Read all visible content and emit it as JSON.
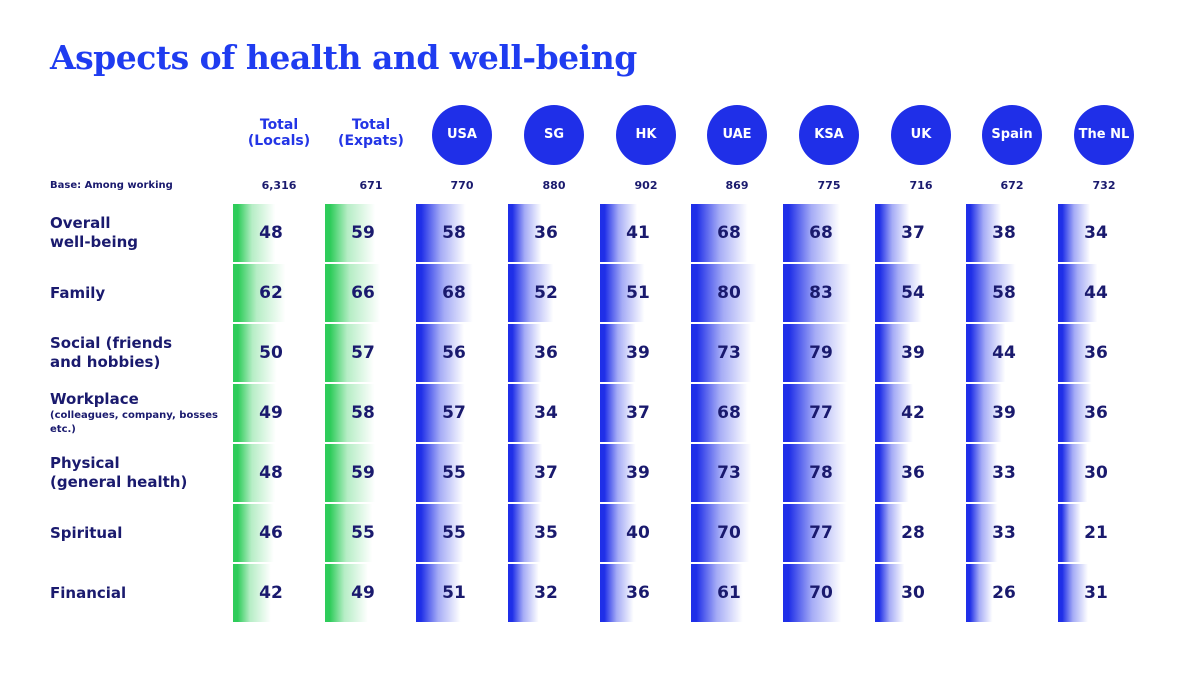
{
  "title": "Aspects of health and well-being",
  "base_label": "Base: Among working",
  "colors": {
    "title": "#1f3cf0",
    "text": "#1a1a6e",
    "locals_expats_bar": "#2ecc5a",
    "country_bar": "#1f2fe8"
  },
  "chart_data": {
    "type": "table",
    "title": "Aspects of health and well-being",
    "columns": [
      {
        "label": "Total (Locals)",
        "style": "plain",
        "base": "6,316"
      },
      {
        "label": "Total (Expats)",
        "style": "plain",
        "base": "671"
      },
      {
        "label": "USA",
        "style": "circle",
        "base": "770"
      },
      {
        "label": "SG",
        "style": "circle",
        "base": "880"
      },
      {
        "label": "HK",
        "style": "circle",
        "base": "902"
      },
      {
        "label": "UAE",
        "style": "circle",
        "base": "869"
      },
      {
        "label": "KSA",
        "style": "circle",
        "base": "775"
      },
      {
        "label": "UK",
        "style": "circle",
        "base": "716"
      },
      {
        "label": "Spain",
        "style": "circle",
        "base": "672"
      },
      {
        "label": "The NL",
        "style": "circle",
        "base": "732"
      }
    ],
    "rows": [
      {
        "label": "Overall well-being",
        "lines": [
          "Overall",
          "well-being"
        ],
        "sub": "",
        "values": [
          48,
          59,
          58,
          36,
          41,
          68,
          68,
          37,
          38,
          34
        ]
      },
      {
        "label": "Family",
        "lines": [
          "Family"
        ],
        "sub": "",
        "values": [
          62,
          66,
          68,
          52,
          51,
          80,
          83,
          54,
          58,
          44
        ]
      },
      {
        "label": "Social (friends and hobbies)",
        "lines": [
          "Social (friends",
          "and hobbies)"
        ],
        "sub": "",
        "values": [
          50,
          57,
          56,
          36,
          39,
          73,
          79,
          39,
          44,
          36
        ]
      },
      {
        "label": "Workplace",
        "lines": [
          "Workplace"
        ],
        "sub": "(colleagues, company, bosses etc.)",
        "values": [
          49,
          58,
          57,
          34,
          37,
          68,
          77,
          42,
          39,
          36
        ]
      },
      {
        "label": "Physical (general health)",
        "lines": [
          "Physical",
          "(general health)"
        ],
        "sub": "",
        "values": [
          48,
          59,
          55,
          37,
          39,
          73,
          78,
          36,
          33,
          30
        ]
      },
      {
        "label": "Spiritual",
        "lines": [
          "Spiritual"
        ],
        "sub": "",
        "values": [
          46,
          55,
          55,
          35,
          40,
          70,
          77,
          28,
          33,
          21
        ]
      },
      {
        "label": "Financial",
        "lines": [
          "Financial"
        ],
        "sub": "",
        "values": [
          42,
          49,
          51,
          32,
          36,
          61,
          70,
          30,
          26,
          31
        ]
      }
    ]
  }
}
